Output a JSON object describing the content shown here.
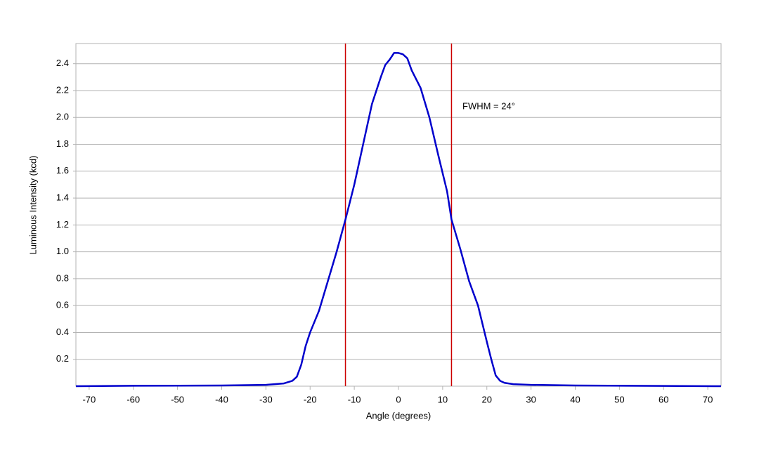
{
  "chart_data": {
    "type": "line",
    "xlabel": "Angle (degrees)",
    "ylabel": "Luminous Intensity (kcd)",
    "annotation": "FWHM = 24°",
    "x": [
      -73,
      -60,
      -40,
      -30,
      -26,
      -24,
      -23,
      -22,
      -21,
      -20,
      -18,
      -16,
      -14,
      -12,
      -10,
      -8,
      -6,
      -4,
      -3,
      -2,
      -1,
      0,
      1,
      2,
      3,
      5,
      7,
      9,
      11,
      12,
      14,
      16,
      18,
      20,
      21,
      22,
      23,
      24,
      26,
      30,
      40,
      60,
      73
    ],
    "values": [
      0.0,
      0.003,
      0.005,
      0.01,
      0.02,
      0.04,
      0.07,
      0.16,
      0.3,
      0.4,
      0.56,
      0.78,
      1.0,
      1.24,
      1.5,
      1.8,
      2.1,
      2.3,
      2.39,
      2.43,
      2.48,
      2.48,
      2.47,
      2.44,
      2.35,
      2.22,
      2.0,
      1.72,
      1.45,
      1.24,
      1.02,
      0.78,
      0.6,
      0.33,
      0.2,
      0.08,
      0.04,
      0.025,
      0.015,
      0.01,
      0.005,
      0.002,
      0.0
    ],
    "color": "#0000cc",
    "vlines": [
      -12,
      12
    ],
    "vline_color": "#cc0000",
    "xlim": [
      -73,
      73
    ],
    "xticks": [
      -70,
      -60,
      -50,
      -40,
      -30,
      -20,
      -10,
      0,
      10,
      20,
      30,
      40,
      50,
      60,
      70
    ],
    "ylim": [
      0,
      2.55
    ],
    "yticks": [
      0.2,
      0.4,
      0.6,
      0.8,
      {
        "value": 1,
        "label": "1.0"
      },
      1.2,
      1.4,
      1.6,
      1.8,
      {
        "value": 2,
        "label": "2.0"
      },
      2.2,
      2.4
    ],
    "grid": true
  }
}
